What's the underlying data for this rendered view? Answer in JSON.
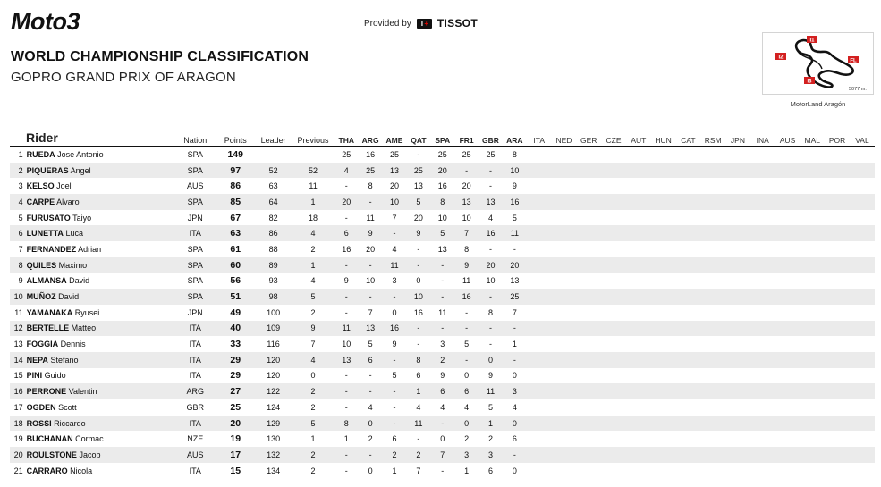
{
  "header": {
    "logo_text": "Moto3",
    "provided_by": "Provided by",
    "sponsor": "TISSOT",
    "title": "WORLD CHAMPIONSHIP CLASSIFICATION",
    "subtitle": "GOPRO GRAND PRIX OF ARAGON"
  },
  "track": {
    "name": "MotorLand Aragón",
    "length": "5077 m.",
    "markers": [
      "I1",
      "I2",
      "I3",
      "FL"
    ]
  },
  "colors": {
    "highlight_red": "#d32020",
    "row_stripe": "#ebebeb"
  },
  "table": {
    "headers": {
      "rider": "Rider",
      "nation": "Nation",
      "points": "Points",
      "leader": "Leader",
      "previous": "Previous"
    },
    "races": [
      "THA",
      "ARG",
      "AME",
      "QAT",
      "SPA",
      "FR1",
      "GBR",
      "ARA"
    ],
    "future_races": [
      "ITA",
      "NED",
      "GER",
      "CZE",
      "AUT",
      "HUN",
      "CAT",
      "RSM",
      "JPN",
      "INA",
      "AUS",
      "MAL",
      "POR",
      "VAL"
    ],
    "rows": [
      {
        "pos": "1",
        "last": "RUEDA",
        "first": "Jose Antonio",
        "nation": "SPA",
        "points": "149",
        "leader": "",
        "previous": "",
        "results": [
          "25",
          "16",
          "25",
          "-",
          "25",
          "25",
          "25",
          "8"
        ]
      },
      {
        "pos": "2",
        "last": "PIQUERAS",
        "first": "Angel",
        "nation": "SPA",
        "points": "97",
        "leader": "52",
        "previous": "52",
        "results": [
          "4",
          "25",
          "13",
          "25",
          "20",
          "-",
          "-",
          "10"
        ]
      },
      {
        "pos": "3",
        "last": "KELSO",
        "first": "Joel",
        "nation": "AUS",
        "points": "86",
        "leader": "63",
        "previous": "11",
        "results": [
          "-",
          "8",
          "20",
          "13",
          "16",
          "20",
          "-",
          "9"
        ]
      },
      {
        "pos": "4",
        "last": "CARPE",
        "first": "Alvaro",
        "nation": "SPA",
        "points": "85",
        "leader": "64",
        "previous": "1",
        "results": [
          "20",
          "-",
          "10",
          "5",
          "8",
          "13",
          "13",
          "16"
        ]
      },
      {
        "pos": "5",
        "last": "FURUSATO",
        "first": "Taiyo",
        "nation": "JPN",
        "points": "67",
        "leader": "82",
        "previous": "18",
        "results": [
          "-",
          "11",
          "7",
          "20",
          "10",
          "10",
          "4",
          "5"
        ]
      },
      {
        "pos": "6",
        "last": "LUNETTA",
        "first": "Luca",
        "nation": "ITA",
        "points": "63",
        "leader": "86",
        "previous": "4",
        "results": [
          "6",
          "9",
          "-",
          "9",
          "5",
          "7",
          "16",
          "11"
        ]
      },
      {
        "pos": "7",
        "last": "FERNANDEZ",
        "first": "Adrian",
        "nation": "SPA",
        "points": "61",
        "leader": "88",
        "previous": "2",
        "results": [
          "16",
          "20",
          "4",
          "-",
          "13",
          "8",
          "-",
          "-"
        ]
      },
      {
        "pos": "8",
        "last": "QUILES",
        "first": "Maximo",
        "nation": "SPA",
        "points": "60",
        "leader": "89",
        "previous": "1",
        "results": [
          "-",
          "-",
          "11",
          "-",
          "-",
          "9",
          "20",
          "20"
        ]
      },
      {
        "pos": "9",
        "last": "ALMANSA",
        "first": "David",
        "nation": "SPA",
        "points": "56",
        "leader": "93",
        "previous": "4",
        "results": [
          "9",
          "10",
          "3",
          "0",
          "-",
          "11",
          "10",
          "13"
        ]
      },
      {
        "pos": "10",
        "last": "MUÑOZ",
        "first": "David",
        "nation": "SPA",
        "points": "51",
        "leader": "98",
        "previous": "5",
        "results": [
          "-",
          "-",
          "-",
          "10",
          "-",
          "16",
          "-",
          "25"
        ]
      },
      {
        "pos": "11",
        "last": "YAMANAKA",
        "first": "Ryusei",
        "nation": "JPN",
        "points": "49",
        "leader": "100",
        "previous": "2",
        "results": [
          "-",
          "7",
          "0",
          "16",
          "11",
          "-",
          "8",
          "7"
        ]
      },
      {
        "pos": "12",
        "last": "BERTELLE",
        "first": "Matteo",
        "nation": "ITA",
        "points": "40",
        "leader": "109",
        "previous": "9",
        "results": [
          "11",
          "13",
          "16",
          "-",
          "-",
          "-",
          "-",
          "-"
        ]
      },
      {
        "pos": "13",
        "last": "FOGGIA",
        "first": "Dennis",
        "nation": "ITA",
        "points": "33",
        "leader": "116",
        "previous": "7",
        "results": [
          "10",
          "5",
          "9",
          "-",
          "3",
          "5",
          "-",
          "1"
        ]
      },
      {
        "pos": "14",
        "last": "NEPA",
        "first": "Stefano",
        "nation": "ITA",
        "points": "29",
        "leader": "120",
        "previous": "4",
        "results": [
          "13",
          "6",
          "-",
          "8",
          "2",
          "-",
          "0",
          "-"
        ]
      },
      {
        "pos": "15",
        "last": "PINI",
        "first": "Guido",
        "nation": "ITA",
        "points": "29",
        "leader": "120",
        "previous": "0",
        "results": [
          "-",
          "-",
          "5",
          "6",
          "9",
          "0",
          "9",
          "0"
        ]
      },
      {
        "pos": "16",
        "last": "PERRONE",
        "first": "Valentin",
        "nation": "ARG",
        "points": "27",
        "leader": "122",
        "previous": "2",
        "results": [
          "-",
          "-",
          "-",
          "1",
          "6",
          "6",
          "11",
          "3"
        ]
      },
      {
        "pos": "17",
        "last": "OGDEN",
        "first": "Scott",
        "nation": "GBR",
        "points": "25",
        "leader": "124",
        "previous": "2",
        "results": [
          "-",
          "4",
          "-",
          "4",
          "4",
          "4",
          "5",
          "4"
        ]
      },
      {
        "pos": "18",
        "last": "ROSSI",
        "first": "Riccardo",
        "nation": "ITA",
        "points": "20",
        "leader": "129",
        "previous": "5",
        "results": [
          "8",
          "0",
          "-",
          "11",
          "-",
          "0",
          "1",
          "0"
        ]
      },
      {
        "pos": "19",
        "last": "BUCHANAN",
        "first": "Cormac",
        "nation": "NZE",
        "points": "19",
        "leader": "130",
        "previous": "1",
        "results": [
          "1",
          "2",
          "6",
          "-",
          "0",
          "2",
          "2",
          "6"
        ]
      },
      {
        "pos": "20",
        "last": "ROULSTONE",
        "first": "Jacob",
        "nation": "AUS",
        "points": "17",
        "leader": "132",
        "previous": "2",
        "results": [
          "-",
          "-",
          "2",
          "2",
          "7",
          "3",
          "3",
          "-"
        ]
      },
      {
        "pos": "21",
        "last": "CARRARO",
        "first": "Nicola",
        "nation": "ITA",
        "points": "15",
        "leader": "134",
        "previous": "2",
        "results": [
          "-",
          "0",
          "1",
          "7",
          "-",
          "1",
          "6",
          "0"
        ]
      }
    ]
  }
}
